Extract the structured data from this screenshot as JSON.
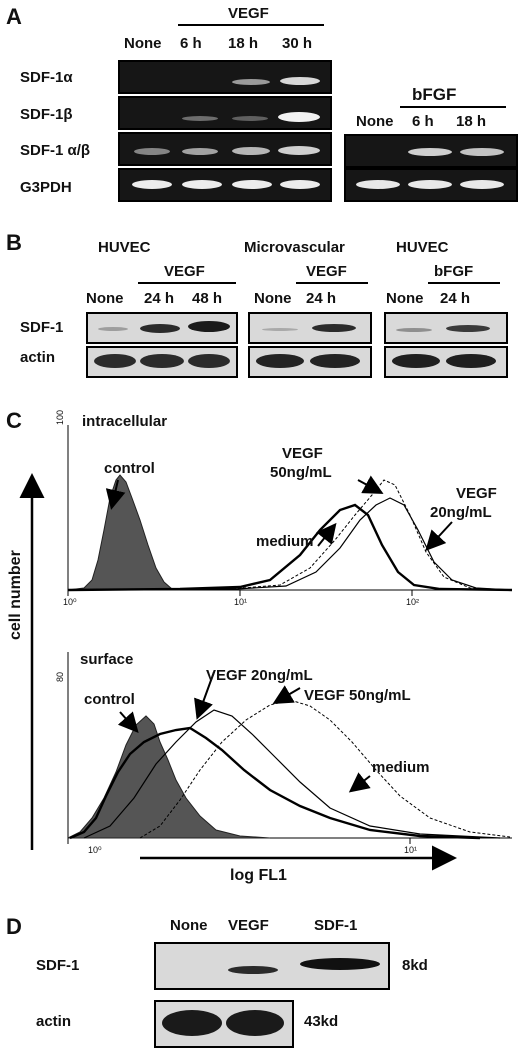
{
  "panelA": {
    "label": "A",
    "vegf_header": "VEGF",
    "lanes": [
      "None",
      "6 h",
      "18 h",
      "30 h"
    ],
    "rows": [
      "SDF-1α",
      "SDF-1β",
      "SDF-1 α/β",
      "G3PDH"
    ],
    "bfgf_header": "bFGF",
    "bfgf_lanes": [
      "None",
      "6 h",
      "18 h"
    ]
  },
  "panelB": {
    "label": "B",
    "groups": [
      {
        "cell": "HUVEC",
        "treatment": "VEGF",
        "lanes": [
          "None",
          "24 h",
          "48 h"
        ]
      },
      {
        "cell": "Microvascular",
        "treatment": "VEGF",
        "lanes": [
          "None",
          "24 h"
        ]
      },
      {
        "cell": "HUVEC",
        "treatment": "bFGF",
        "lanes": [
          "None",
          "24 h"
        ]
      }
    ],
    "rows": [
      "SDF-1",
      "actin"
    ]
  },
  "panelC": {
    "label": "C",
    "y_axis_label": "cell number",
    "x_axis_label": "log FL1",
    "top": {
      "title": "intracellular",
      "ymax_tick": "100",
      "x_ticks": [
        "10⁰",
        "10¹",
        "10²"
      ],
      "annotations": [
        "control",
        "medium",
        "VEGF",
        "50ng/mL",
        "VEGF",
        "20ng/mL"
      ]
    },
    "bottom": {
      "title": "surface",
      "ymax_tick": "80",
      "x_ticks": [
        "10⁰",
        "10¹"
      ],
      "annotations": [
        "control",
        "VEGF 20ng/mL",
        "VEGF 50ng/mL",
        "medium"
      ]
    }
  },
  "panelD": {
    "label": "D",
    "lanes": [
      "None",
      "VEGF",
      "SDF-1"
    ],
    "rows": [
      "SDF-1",
      "actin"
    ],
    "sizes": [
      "8kd",
      "43kd"
    ]
  }
}
